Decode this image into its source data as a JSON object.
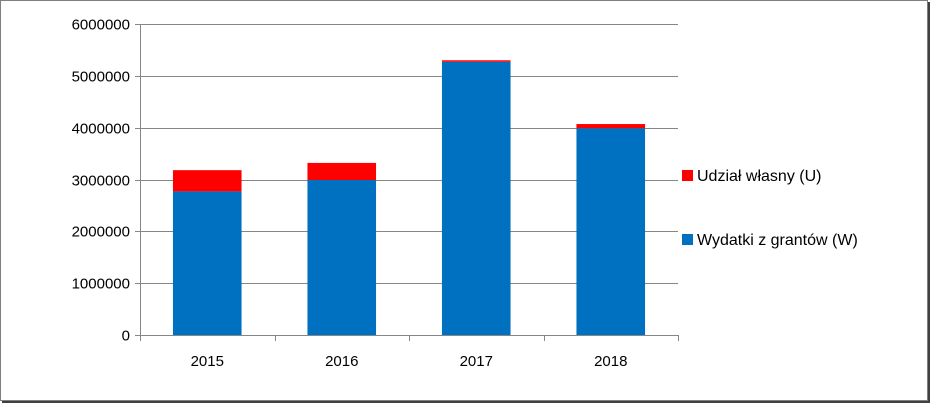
{
  "chart_data": {
    "type": "bar",
    "stacked": true,
    "categories": [
      "2015",
      "2016",
      "2017",
      "2018"
    ],
    "series": [
      {
        "name": "Wydatki z grantów (W)",
        "color": "#0070C0",
        "values": [
          2770000,
          2990000,
          5270000,
          3990000
        ]
      },
      {
        "name": "Udział własny (U)",
        "color": "#FF0000",
        "values": [
          410000,
          330000,
          30000,
          80000
        ]
      }
    ],
    "ylim": [
      0,
      6000000
    ],
    "yticks": [
      0,
      1000000,
      2000000,
      3000000,
      4000000,
      5000000,
      6000000
    ],
    "ytick_labels": [
      "0",
      "1000000",
      "2000000",
      "3000000",
      "4000000",
      "5000000",
      "6000000"
    ],
    "grid": true,
    "legend": {
      "placement": "right",
      "entries": [
        "Udział własny (U)",
        "Wydatki z grantów (W)"
      ]
    }
  }
}
